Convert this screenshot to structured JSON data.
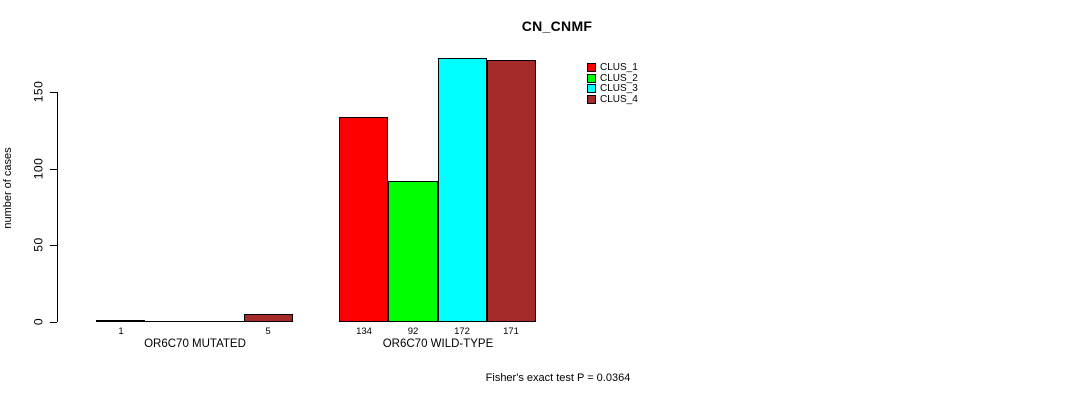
{
  "chart_data": {
    "type": "bar",
    "title": "CN_CNMF",
    "ylabel": "number of cases",
    "xlabel": "",
    "ylim": [
      0,
      172
    ],
    "yticks": [
      0,
      50,
      100,
      150
    ],
    "grid": false,
    "legend_position": "top-right",
    "categories": [
      "OR6C70 MUTATED",
      "OR6C70 WILD-TYPE"
    ],
    "series": [
      {
        "name": "CLUS_1",
        "color": "#FF0000",
        "values": [
          1,
          134
        ]
      },
      {
        "name": "CLUS_2",
        "color": "#00FF00",
        "values": [
          0,
          92
        ]
      },
      {
        "name": "CLUS_3",
        "color": "#00FFFF",
        "values": [
          0,
          172
        ]
      },
      {
        "name": "CLUS_4",
        "color": "#A52A2A",
        "values": [
          5,
          171
        ]
      }
    ],
    "bar_value_labels": [
      [
        "1",
        "",
        "",
        "5"
      ],
      [
        "134",
        "92",
        "172",
        "171"
      ]
    ],
    "annotation": "Fisher's exact test P = 0.0364",
    "axis_color": "#000000",
    "bar_border_color": "#000000",
    "background_color": "#FFFFFF"
  }
}
